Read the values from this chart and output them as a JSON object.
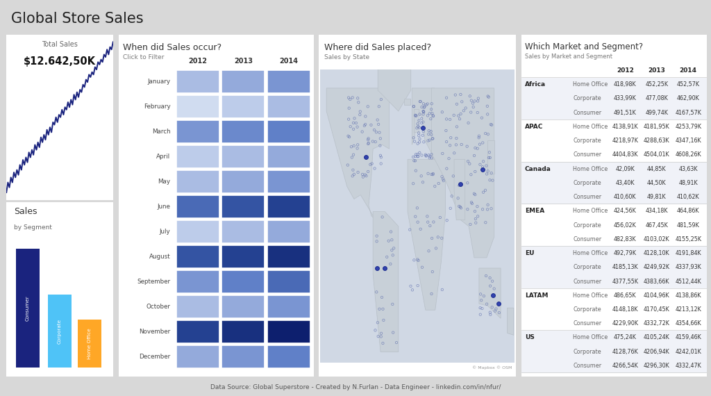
{
  "title": "Global Store Sales",
  "bg_color": "#e0e0e0",
  "panel_bg": "#ffffff",
  "footer": "Data Source: Global Superstore - Created by N.Furlan - Data Engineer - linkedin.com/in/nfur/",
  "total_sales_label": "Total Sales",
  "total_sales_value": "$12.642,50K",
  "line_data": [
    10,
    14,
    12,
    16,
    14,
    18,
    16,
    19,
    17,
    21,
    19,
    23,
    21,
    24,
    22,
    26,
    24,
    27,
    25,
    29,
    27,
    30,
    28,
    32,
    30,
    33,
    31,
    35,
    33,
    36,
    34,
    38,
    37,
    40,
    38,
    41,
    40,
    43,
    41,
    44,
    43,
    46,
    44,
    47,
    45,
    49,
    47,
    50,
    48,
    51,
    50,
    53,
    52,
    55,
    54,
    57,
    56,
    58,
    57,
    60,
    59,
    62,
    61,
    63,
    62,
    65,
    64,
    67,
    65,
    68,
    67,
    70
  ],
  "line_color": "#1a237e",
  "segment_labels": [
    "Consumer",
    "Corporate",
    "Home Office"
  ],
  "segment_values": [
    5.2,
    3.2,
    2.1
  ],
  "segment_colors": [
    "#1a237e",
    "#4fc3f7",
    "#ffa726"
  ],
  "heatmap_title": "When did Sales occur?",
  "heatmap_subtitle": "Click to Filter",
  "heatmap_months": [
    "January",
    "February",
    "March",
    "April",
    "May",
    "June",
    "July",
    "August",
    "September",
    "October",
    "November",
    "December"
  ],
  "heatmap_years": [
    "2012",
    "2013",
    "2014"
  ],
  "heatmap_data": [
    [
      2.5,
      3.0,
      3.5
    ],
    [
      1.5,
      2.0,
      2.5
    ],
    [
      3.5,
      3.8,
      4.0
    ],
    [
      2.0,
      2.5,
      3.0
    ],
    [
      2.5,
      3.0,
      3.5
    ],
    [
      4.5,
      5.0,
      5.5
    ],
    [
      2.0,
      2.5,
      3.0
    ],
    [
      5.0,
      5.5,
      6.0
    ],
    [
      3.5,
      4.0,
      4.5
    ],
    [
      2.5,
      3.0,
      3.5
    ],
    [
      5.5,
      6.0,
      6.5
    ],
    [
      3.0,
      3.5,
      4.0
    ]
  ],
  "map_title": "Where did Sales placed?",
  "map_subtitle": "Sales by State",
  "table_title": "Which Market and Segment?",
  "table_subtitle": "Sales by Market and Segment",
  "table_markets": [
    "Africa",
    "Africa",
    "Africa",
    "APAC",
    "APAC",
    "APAC",
    "Canada",
    "Canada",
    "Canada",
    "EMEA",
    "EMEA",
    "EMEA",
    "EU",
    "EU",
    "EU",
    "LATAM",
    "LATAM",
    "LATAM",
    "US",
    "US",
    "US"
  ],
  "table_segments": [
    "Home Office",
    "Corporate",
    "Consumer",
    "Home Office",
    "Corporate",
    "Consumer",
    "Home Office",
    "Corporate",
    "Consumer",
    "Home Office",
    "Corporate",
    "Consumer",
    "Home Office",
    "Corporate",
    "Consumer",
    "Home Office",
    "Corporate",
    "Consumer",
    "Home Office",
    "Corporate",
    "Consumer"
  ],
  "table_2012": [
    "418,98K",
    "433,99K",
    "491,51K",
    "4138,91K",
    "4218,97K",
    "4404,83K",
    "42,09K",
    "43,40K",
    "410,60K",
    "424,56K",
    "456,02K",
    "482,83K",
    "492,79K",
    "4185,13K",
    "4377,55K",
    "486,65K",
    "4148,18K",
    "4229,90K",
    "475,24K",
    "4128,76K",
    "4266,54K"
  ],
  "table_2013": [
    "452,25K",
    "477,08K",
    "499,74K",
    "4181,95K",
    "4288,63K",
    "4504,01K",
    "44,85K",
    "44,50K",
    "49,81K",
    "434,18K",
    "467,45K",
    "4103,02K",
    "4128,10K",
    "4249,92K",
    "4383,66K",
    "4104,96K",
    "4170,45K",
    "4332,72K",
    "4105,24K",
    "4206,94K",
    "4296,30K"
  ],
  "table_2014": [
    "452,57K",
    "462,90K",
    "4167,57K",
    "4253,79K",
    "4347,16K",
    "4608,26K",
    "43,63K",
    "48,91K",
    "410,62K",
    "464,86K",
    "481,59K",
    "4155,25K",
    "4191,84K",
    "4337,93K",
    "4512,44K",
    "4138,86K",
    "4213,12K",
    "4354,66K",
    "4159,46K",
    "4242,01K",
    "4332,47K"
  ]
}
